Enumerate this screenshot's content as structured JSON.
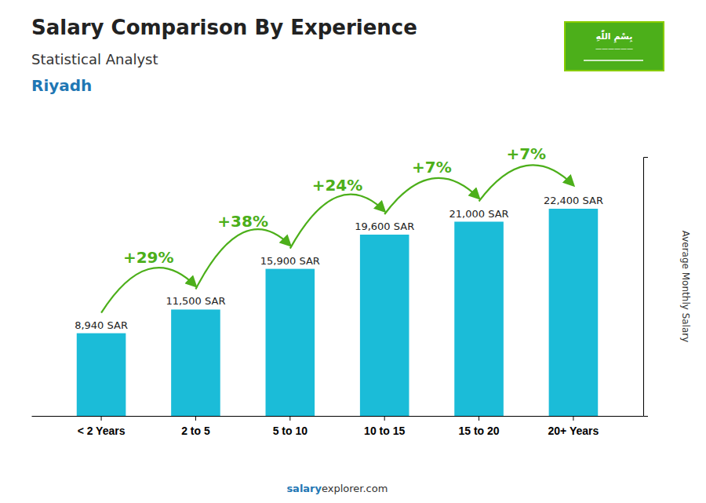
{
  "chart_data": {
    "type": "bar",
    "title": "Salary Comparison By Experience",
    "subtitle": "Statistical Analyst",
    "city": "Riyadh",
    "ylabel": "Average Monthly Salary",
    "categories": [
      "< 2 Years",
      "2 to 5",
      "5 to 10",
      "10 to 15",
      "15 to 20",
      "20+ Years"
    ],
    "values": [
      8940,
      11500,
      15900,
      19600,
      21000,
      22400
    ],
    "value_labels": [
      "8,940 SAR",
      "11,500 SAR",
      "15,900 SAR",
      "19,600 SAR",
      "21,000 SAR",
      "22,400 SAR"
    ],
    "data_labels": true,
    "annotations": [
      "+29%",
      "+38%",
      "+24%",
      "+7%",
      "+7%"
    ],
    "footer": [
      "salary",
      "explorer.com"
    ],
    "flag_text": [
      "بِسْمِ اللّٰهِ",
      "——————"
    ],
    "color": "#1bbcd8",
    "ylim": [
      0,
      28000
    ],
    "tick_labels": "x",
    "grid": false
  }
}
